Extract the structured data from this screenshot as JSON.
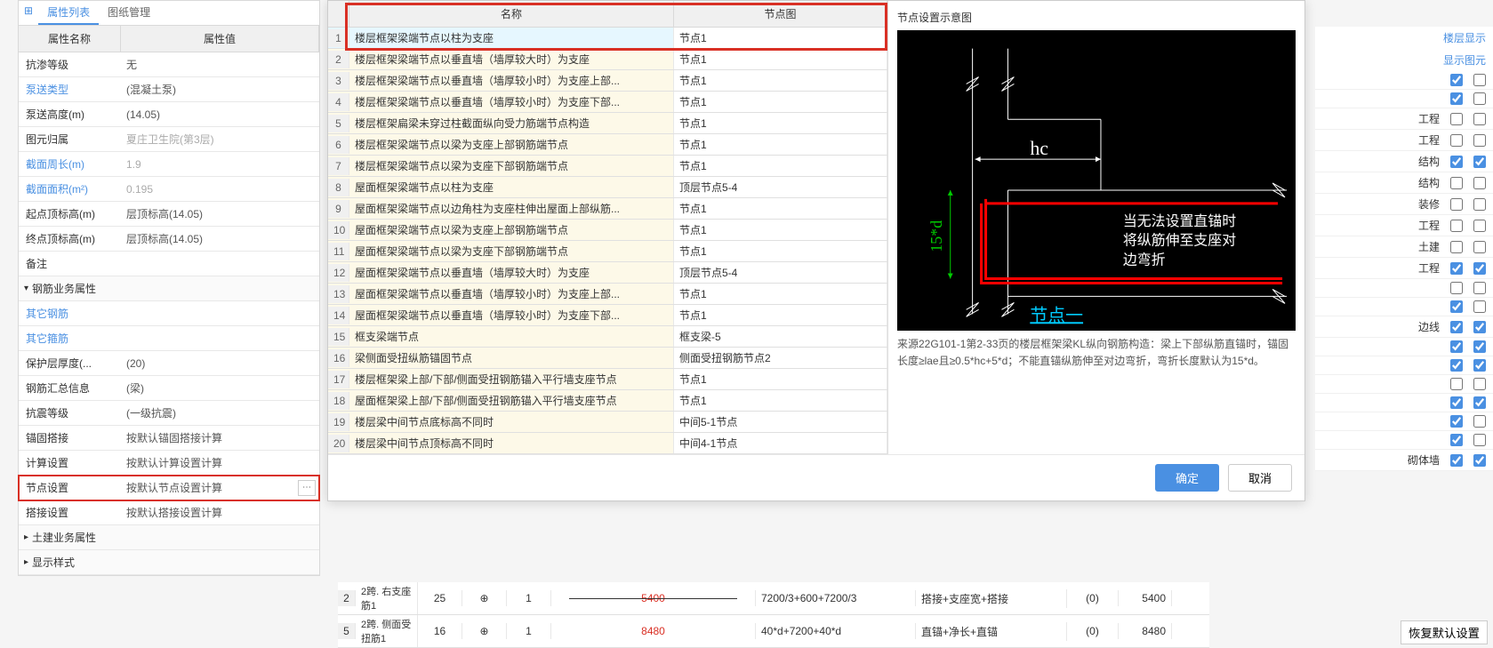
{
  "tabs": {
    "t1": "属性列表",
    "t2": "图纸管理"
  },
  "propHeader": {
    "name": "属性名称",
    "value": "属性值"
  },
  "props": [
    {
      "n": "抗渗等级",
      "v": "无"
    },
    {
      "n": "泵送类型",
      "v": "(混凝土泵)",
      "link": true
    },
    {
      "n": "泵送高度(m)",
      "v": "(14.05)"
    },
    {
      "n": "图元归属",
      "v": "夏庄卫生院(第3层)",
      "gray": true
    },
    {
      "n": "截面周长(m)",
      "v": "1.9",
      "link": true,
      "gray": true
    },
    {
      "n": "截面面积(m²)",
      "v": "0.195",
      "link": true,
      "gray": true
    },
    {
      "n": "起点顶标高(m)",
      "v": "层顶标高(14.05)"
    },
    {
      "n": "终点顶标高(m)",
      "v": "层顶标高(14.05)"
    },
    {
      "n": "备注",
      "v": ""
    }
  ],
  "section1": "钢筋业务属性",
  "props2": [
    {
      "n": "其它钢筋",
      "v": "",
      "link": true
    },
    {
      "n": "其它箍筋",
      "v": "",
      "link": true
    },
    {
      "n": "保护层厚度(...",
      "v": "(20)"
    },
    {
      "n": "钢筋汇总信息",
      "v": "(梁)"
    },
    {
      "n": "抗震等级",
      "v": "(一级抗震)"
    },
    {
      "n": "锚固搭接",
      "v": "按默认锚固搭接计算"
    },
    {
      "n": "计算设置",
      "v": "按默认计算设置计算"
    },
    {
      "n": "节点设置",
      "v": "按默认节点设置计算",
      "hl": true,
      "more": true
    },
    {
      "n": "搭接设置",
      "v": "按默认搭接设置计算"
    }
  ],
  "section2": "土建业务属性",
  "section3": "显示样式",
  "dlgHead": {
    "num": "",
    "name": "名称",
    "jd": "节点图"
  },
  "dlgRows": [
    {
      "i": 1,
      "n": "楼层框架梁端节点以柱为支座",
      "j": "节点1",
      "sel": true
    },
    {
      "i": 2,
      "n": "楼层框架梁端节点以垂直墙（墙厚较大时）为支座",
      "j": "节点1"
    },
    {
      "i": 3,
      "n": "楼层框架梁端节点以垂直墙（墙厚较小时）为支座上部...",
      "j": "节点1"
    },
    {
      "i": 4,
      "n": "楼层框架梁端节点以垂直墙（墙厚较小时）为支座下部...",
      "j": "节点1"
    },
    {
      "i": 5,
      "n": "楼层框架扁梁未穿过柱截面纵向受力筋端节点构造",
      "j": "节点1"
    },
    {
      "i": 6,
      "n": "楼层框架梁端节点以梁为支座上部钢筋端节点",
      "j": "节点1"
    },
    {
      "i": 7,
      "n": "楼层框架梁端节点以梁为支座下部钢筋端节点",
      "j": "节点1"
    },
    {
      "i": 8,
      "n": "屋面框架梁端节点以柱为支座",
      "j": "顶层节点5-4"
    },
    {
      "i": 9,
      "n": "屋面框架梁端节点以边角柱为支座柱伸出屋面上部纵筋...",
      "j": "节点1"
    },
    {
      "i": 10,
      "n": "屋面框架梁端节点以梁为支座上部钢筋端节点",
      "j": "节点1"
    },
    {
      "i": 11,
      "n": "屋面框架梁端节点以梁为支座下部钢筋端节点",
      "j": "节点1"
    },
    {
      "i": 12,
      "n": "屋面框架梁端节点以垂直墙（墙厚较大时）为支座",
      "j": "顶层节点5-4"
    },
    {
      "i": 13,
      "n": "屋面框架梁端节点以垂直墙（墙厚较小时）为支座上部...",
      "j": "节点1"
    },
    {
      "i": 14,
      "n": "屋面框架梁端节点以垂直墙（墙厚较小时）为支座下部...",
      "j": "节点1"
    },
    {
      "i": 15,
      "n": "框支梁端节点",
      "j": "框支梁-5"
    },
    {
      "i": 16,
      "n": "梁侧面受扭纵筋锚固节点",
      "j": "侧面受扭钢筋节点2"
    },
    {
      "i": 17,
      "n": "楼层框架梁上部/下部/侧面受扭钢筋锚入平行墙支座节点",
      "j": "节点1"
    },
    {
      "i": 18,
      "n": "屋面框架梁上部/下部/侧面受扭钢筋锚入平行墙支座节点",
      "j": "节点1"
    },
    {
      "i": 19,
      "n": "楼层梁中间节点底标高不同时",
      "j": "中间5-1节点"
    },
    {
      "i": 20,
      "n": "楼层梁中间节点顶标高不同时",
      "j": "中间4-1节点"
    }
  ],
  "dlgRight": {
    "title": "节点设置示意图",
    "hc": "hc",
    "d15": "15*d",
    "note1": "当无法设置直锚时",
    "note2": "将纵筋伸至支座对",
    "note3": "边弯折",
    "jd": "节点一",
    "source": "来源22G101-1第2-33页的楼层框架梁KL纵向钢筋构造：梁上下部纵筋直锚时，锚固长度≥lae且≥0.5*hc+5*d；不能直锚纵筋伸至对边弯折，弯折长度默认为15*d。"
  },
  "btns": {
    "ok": "确定",
    "cancel": "取消"
  },
  "rightHead": {
    "show": "楼层显示",
    "graph": "显示图元"
  },
  "rightRows": [
    {
      "l": "",
      "a": true,
      "b": false
    },
    {
      "l": "",
      "a": true,
      "b": false
    },
    {
      "l": "工程",
      "a": false,
      "b": false
    },
    {
      "l": "工程",
      "a": false,
      "b": false
    },
    {
      "l": "结构",
      "a": true,
      "b": true
    },
    {
      "l": "结构",
      "a": false,
      "b": false
    },
    {
      "l": "装修",
      "a": false,
      "b": false
    },
    {
      "l": "工程",
      "a": false,
      "b": false
    },
    {
      "l": "土建",
      "a": false,
      "b": false
    },
    {
      "l": "工程",
      "a": true,
      "b": true
    },
    {
      "l": "",
      "a": false,
      "b": false
    },
    {
      "l": "",
      "a": true,
      "b": false
    },
    {
      "l": "边线",
      "a": true,
      "b": true
    },
    {
      "l": "",
      "a": true,
      "b": true
    },
    {
      "l": "",
      "a": true,
      "b": true
    },
    {
      "l": "",
      "a": false,
      "b": false
    },
    {
      "l": "",
      "a": true,
      "b": true
    },
    {
      "l": "",
      "a": true,
      "b": false
    },
    {
      "l": "",
      "a": true,
      "b": false
    },
    {
      "l": "砌体墙",
      "a": true,
      "b": true
    }
  ],
  "bottom": [
    {
      "i": "2",
      "d": "2跨. 右支座筋1",
      "v": "25",
      "s": "⊕",
      "n": "1",
      "len": "5400",
      "bar": true,
      "f": "7200/3+600+7200/3",
      "m": "搭接+支座宽+搭接",
      "z": "(0)",
      "t": "5400"
    },
    {
      "i": "5",
      "d": "2跨. 侧面受扭筋1",
      "v": "16",
      "s": "⊕",
      "n": "1",
      "len": "8480",
      "f": "40*d+7200+40*d",
      "m": "直锚+净长+直锚",
      "z": "(0)",
      "t": "8480"
    }
  ],
  "restore": "恢复默认设置"
}
